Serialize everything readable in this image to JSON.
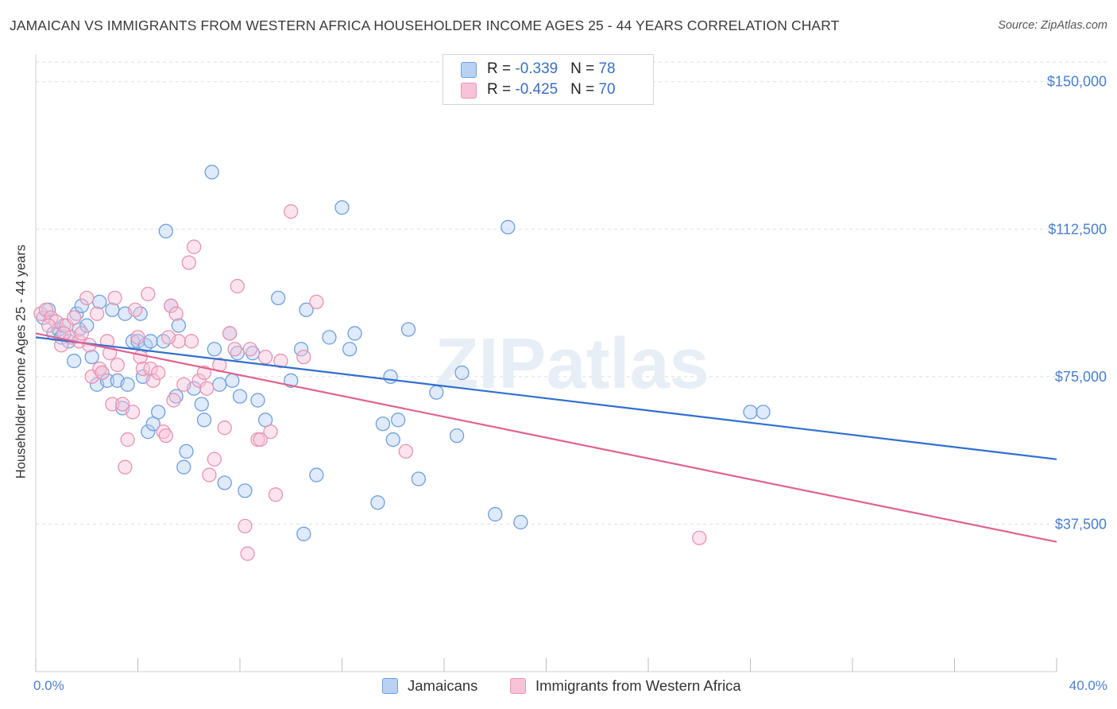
{
  "header": {
    "title": "JAMAICAN VS IMMIGRANTS FROM WESTERN AFRICA HOUSEHOLDER INCOME AGES 25 - 44 YEARS CORRELATION CHART",
    "source": "Source: ZipAtlas.com"
  },
  "watermark": "ZIPatlas",
  "legend": {
    "series": [
      {
        "r_label": "R = ",
        "r_value": "-0.339",
        "n_label": "N = ",
        "n_value": "78"
      },
      {
        "r_label": "R = ",
        "r_value": "-0.425",
        "n_label": "N = ",
        "n_value": "70"
      }
    ]
  },
  "colors": {
    "blue_fill": "#b9d1f3",
    "blue_stroke": "#6f9fdd",
    "blue_line": "#2f6fcf",
    "pink_fill": "#f6c4d6",
    "pink_stroke": "#e993b2",
    "pink_line": "#e0628f",
    "axis_label": "#4a7fcf",
    "grid": "#dddddd"
  },
  "chart_data": {
    "type": "scatter",
    "ylabel": "Householder Income Ages 25 - 44 years",
    "xlim": [
      0,
      40
    ],
    "ylim": [
      0,
      155000
    ],
    "x_tick_labels": [
      "0.0%",
      "40.0%"
    ],
    "y_ticks": [
      37500,
      75000,
      112500,
      150000
    ],
    "y_tick_labels": [
      "$37,500",
      "$75,000",
      "$112,500",
      "$150,000"
    ],
    "grid": true,
    "legend_position": "top-center",
    "series": [
      {
        "name": "Jamaicans",
        "color": "#6f9fdd",
        "trend": [
          [
            0,
            85000
          ],
          [
            40,
            54000
          ]
        ],
        "points": [
          [
            0.3,
            90000
          ],
          [
            0.5,
            92000
          ],
          [
            0.7,
            86000
          ],
          [
            0.9,
            87000
          ],
          [
            1.0,
            85000
          ],
          [
            1.1,
            88000
          ],
          [
            1.3,
            84000
          ],
          [
            1.5,
            79000
          ],
          [
            1.6,
            91000
          ],
          [
            1.7,
            87000
          ],
          [
            1.8,
            93000
          ],
          [
            2.0,
            88000
          ],
          [
            2.2,
            80000
          ],
          [
            2.4,
            73000
          ],
          [
            2.5,
            94000
          ],
          [
            2.6,
            76000
          ],
          [
            2.8,
            74000
          ],
          [
            3.0,
            92000
          ],
          [
            3.2,
            74000
          ],
          [
            3.4,
            67000
          ],
          [
            3.5,
            91000
          ],
          [
            3.6,
            73000
          ],
          [
            3.8,
            84000
          ],
          [
            4.0,
            84000
          ],
          [
            4.1,
            91000
          ],
          [
            4.2,
            75000
          ],
          [
            4.3,
            83000
          ],
          [
            4.4,
            61000
          ],
          [
            4.5,
            84000
          ],
          [
            4.6,
            63000
          ],
          [
            4.8,
            66000
          ],
          [
            5.0,
            84000
          ],
          [
            5.1,
            112000
          ],
          [
            5.3,
            93000
          ],
          [
            5.5,
            70000
          ],
          [
            5.6,
            88000
          ],
          [
            5.8,
            52000
          ],
          [
            5.9,
            56000
          ],
          [
            6.2,
            72000
          ],
          [
            6.5,
            68000
          ],
          [
            6.6,
            64000
          ],
          [
            6.9,
            127000
          ],
          [
            7.0,
            82000
          ],
          [
            7.2,
            73000
          ],
          [
            7.4,
            48000
          ],
          [
            7.6,
            86000
          ],
          [
            7.7,
            74000
          ],
          [
            7.9,
            81000
          ],
          [
            8.0,
            70000
          ],
          [
            8.2,
            46000
          ],
          [
            8.5,
            81000
          ],
          [
            8.7,
            69000
          ],
          [
            9.0,
            64000
          ],
          [
            9.5,
            95000
          ],
          [
            10.0,
            74000
          ],
          [
            10.4,
            82000
          ],
          [
            10.5,
            35000
          ],
          [
            10.6,
            92000
          ],
          [
            11.0,
            50000
          ],
          [
            11.5,
            85000
          ],
          [
            12.0,
            118000
          ],
          [
            12.3,
            82000
          ],
          [
            12.5,
            86000
          ],
          [
            13.4,
            43000
          ],
          [
            13.6,
            63000
          ],
          [
            13.9,
            75000
          ],
          [
            14.0,
            59000
          ],
          [
            14.2,
            64000
          ],
          [
            14.6,
            87000
          ],
          [
            15.0,
            49000
          ],
          [
            15.7,
            71000
          ],
          [
            16.5,
            60000
          ],
          [
            16.7,
            76000
          ],
          [
            18.0,
            40000
          ],
          [
            18.5,
            113000
          ],
          [
            19.0,
            38000
          ],
          [
            28.0,
            66000
          ],
          [
            28.5,
            66000
          ]
        ]
      },
      {
        "name": "Immigrants from Western Africa",
        "color": "#e993b2",
        "trend": [
          [
            0,
            86000
          ],
          [
            40,
            33000
          ]
        ],
        "points": [
          [
            0.2,
            91000
          ],
          [
            0.4,
            92000
          ],
          [
            0.6,
            90000
          ],
          [
            0.8,
            89000
          ],
          [
            1.0,
            83000
          ],
          [
            1.2,
            88000
          ],
          [
            1.4,
            85000
          ],
          [
            1.5,
            90000
          ],
          [
            1.7,
            84000
          ],
          [
            1.8,
            86000
          ],
          [
            2.0,
            95000
          ],
          [
            2.1,
            83000
          ],
          [
            2.2,
            75000
          ],
          [
            2.4,
            91000
          ],
          [
            2.5,
            77000
          ],
          [
            2.6,
            76000
          ],
          [
            2.8,
            84000
          ],
          [
            3.0,
            68000
          ],
          [
            3.1,
            95000
          ],
          [
            3.2,
            78000
          ],
          [
            3.4,
            68000
          ],
          [
            3.5,
            52000
          ],
          [
            3.6,
            59000
          ],
          [
            3.8,
            66000
          ],
          [
            3.9,
            92000
          ],
          [
            4.0,
            85000
          ],
          [
            4.1,
            80000
          ],
          [
            4.2,
            77000
          ],
          [
            4.4,
            96000
          ],
          [
            4.5,
            77000
          ],
          [
            4.6,
            74000
          ],
          [
            4.8,
            76000
          ],
          [
            5.0,
            61000
          ],
          [
            5.1,
            60000
          ],
          [
            5.3,
            93000
          ],
          [
            5.4,
            69000
          ],
          [
            5.5,
            91000
          ],
          [
            5.6,
            84000
          ],
          [
            5.8,
            73000
          ],
          [
            6.0,
            104000
          ],
          [
            6.1,
            84000
          ],
          [
            6.2,
            108000
          ],
          [
            6.4,
            74000
          ],
          [
            6.6,
            76000
          ],
          [
            6.8,
            50000
          ],
          [
            7.0,
            54000
          ],
          [
            7.2,
            78000
          ],
          [
            7.4,
            62000
          ],
          [
            7.6,
            86000
          ],
          [
            7.8,
            82000
          ],
          [
            7.9,
            98000
          ],
          [
            8.2,
            37000
          ],
          [
            8.3,
            30000
          ],
          [
            8.4,
            82000
          ],
          [
            8.7,
            59000
          ],
          [
            8.8,
            59000
          ],
          [
            9.0,
            80000
          ],
          [
            9.2,
            61000
          ],
          [
            9.4,
            45000
          ],
          [
            10.0,
            117000
          ],
          [
            10.5,
            80000
          ],
          [
            11.0,
            94000
          ],
          [
            14.5,
            56000
          ],
          [
            26.0,
            34000
          ],
          [
            0.5,
            88000
          ],
          [
            1.1,
            86000
          ],
          [
            2.9,
            81000
          ],
          [
            5.2,
            85000
          ],
          [
            6.7,
            72000
          ],
          [
            9.6,
            79000
          ]
        ]
      }
    ]
  }
}
